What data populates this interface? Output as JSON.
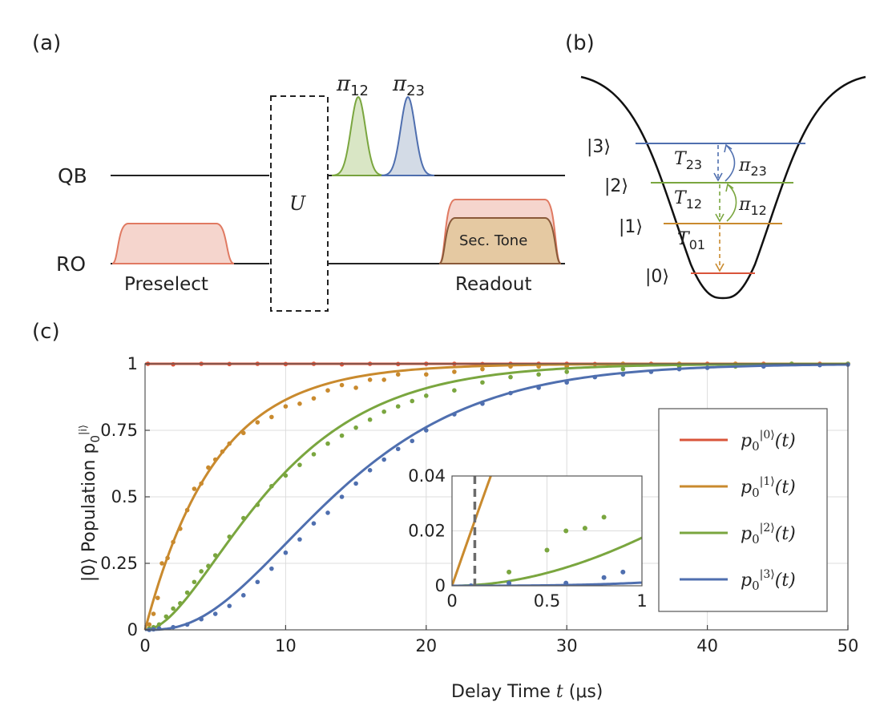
{
  "panels": {
    "a": "(a)",
    "b": "(b)",
    "c": "(c)"
  },
  "pulse_sequence": {
    "qb_label": "QB",
    "ro_label": "RO",
    "gate_label": "U",
    "pulse1": {
      "name": "π",
      "sub": "12",
      "color": "#7aa63f"
    },
    "pulse2": {
      "name": "π",
      "sub": "23",
      "color": "#4f6faf"
    },
    "preselect_label": "Preselect",
    "readout_label": "Readout",
    "sec_tone_label": "Sec. Tone",
    "readout_color": "#e38a73",
    "sec_tone_color": "#c79a4e"
  },
  "energy_levels": {
    "levels": [
      {
        "ket": "|0⟩",
        "color": "#d9543a"
      },
      {
        "ket": "|1⟩",
        "color": "#c98a2e"
      },
      {
        "ket": "|2⟩",
        "color": "#7aa63f"
      },
      {
        "ket": "|3⟩",
        "color": "#4f6faf"
      }
    ],
    "decays": [
      {
        "name": "T",
        "sub": "23"
      },
      {
        "name": "T",
        "sub": "12"
      },
      {
        "name": "T",
        "sub": "01"
      }
    ],
    "drives": [
      {
        "name": "π",
        "sub": "23"
      },
      {
        "name": "π",
        "sub": "12"
      }
    ]
  },
  "chart_data": {
    "type": "line",
    "xlabel_prefix": "Delay Time ",
    "xlabel_var": "t",
    "xlabel_unit": " (μs)",
    "ylabel": "|0⟩ Population p",
    "ylabel_sub": "0",
    "ylabel_sup": "|i⟩",
    "xlim": [
      0,
      50
    ],
    "ylim": [
      0,
      1
    ],
    "xticks": [
      0,
      10,
      20,
      30,
      40,
      50
    ],
    "yticks": [
      0,
      0.25,
      0.5,
      0.75,
      1
    ],
    "ytick_labels": [
      "0",
      "0.25",
      "0.5",
      "0.75",
      "1"
    ],
    "series": [
      {
        "name": "p0|0⟩(t)",
        "label_base": "p",
        "label_sub": "0",
        "label_sup": "|0⟩",
        "label_tail": "(t)",
        "color": "#d9543a",
        "model": "flat",
        "points": [
          [
            0.2,
            1.0
          ],
          [
            2,
            0.998
          ],
          [
            4,
            1.0
          ],
          [
            6,
            0.999
          ],
          [
            8,
            1.0
          ],
          [
            10,
            0.999
          ],
          [
            12,
            1.0
          ],
          [
            14,
            0.998
          ],
          [
            16,
            1.0
          ],
          [
            18,
            0.999
          ],
          [
            20,
            1.0
          ],
          [
            22,
            1.0
          ],
          [
            24,
            0.999
          ],
          [
            26,
            1.0
          ],
          [
            28,
            1.0
          ],
          [
            30,
            1.0
          ],
          [
            32,
            0.999
          ],
          [
            34,
            1.0
          ],
          [
            36,
            1.0
          ],
          [
            38,
            1.0
          ],
          [
            40,
            1.0
          ],
          [
            42,
            1.0
          ],
          [
            44,
            1.0
          ],
          [
            46,
            1.0
          ],
          [
            48,
            1.0
          ],
          [
            50,
            1.0
          ]
        ]
      },
      {
        "name": "p0|1⟩(t)",
        "label_base": "p",
        "label_sub": "0",
        "label_sup": "|1⟩",
        "label_tail": "(t)",
        "color": "#c98a2e",
        "model": "n1",
        "T": 5,
        "points": [
          [
            0.3,
            0.02
          ],
          [
            0.6,
            0.06
          ],
          [
            0.9,
            0.12
          ],
          [
            1.2,
            0.25
          ],
          [
            1.6,
            0.27
          ],
          [
            2,
            0.33
          ],
          [
            2.5,
            0.38
          ],
          [
            3,
            0.45
          ],
          [
            3.5,
            0.53
          ],
          [
            4,
            0.55
          ],
          [
            4.5,
            0.61
          ],
          [
            5,
            0.64
          ],
          [
            5.5,
            0.67
          ],
          [
            6,
            0.7
          ],
          [
            7,
            0.74
          ],
          [
            8,
            0.78
          ],
          [
            9,
            0.8
          ],
          [
            10,
            0.84
          ],
          [
            11,
            0.85
          ],
          [
            12,
            0.87
          ],
          [
            13,
            0.9
          ],
          [
            14,
            0.92
          ],
          [
            15,
            0.91
          ],
          [
            16,
            0.94
          ],
          [
            17,
            0.94
          ],
          [
            18,
            0.96
          ],
          [
            20,
            0.96
          ],
          [
            22,
            0.97
          ],
          [
            24,
            0.98
          ],
          [
            26,
            0.99
          ],
          [
            28,
            0.99
          ],
          [
            30,
            0.99
          ],
          [
            34,
            1.0
          ],
          [
            38,
            1.0
          ],
          [
            42,
            1.0
          ],
          [
            46,
            1.0
          ],
          [
            50,
            1.0
          ]
        ]
      },
      {
        "name": "p0|2⟩(t)",
        "label_base": "p",
        "label_sub": "0",
        "label_sup": "|2⟩",
        "label_tail": "(t)",
        "color": "#7aa63f",
        "model": "n2",
        "T": 5,
        "points": [
          [
            0.3,
            0.005
          ],
          [
            0.6,
            0.01
          ],
          [
            1,
            0.02
          ],
          [
            1.5,
            0.05
          ],
          [
            2,
            0.08
          ],
          [
            2.5,
            0.1
          ],
          [
            3,
            0.14
          ],
          [
            3.5,
            0.18
          ],
          [
            4,
            0.22
          ],
          [
            4.5,
            0.24
          ],
          [
            5,
            0.28
          ],
          [
            6,
            0.35
          ],
          [
            7,
            0.42
          ],
          [
            8,
            0.47
          ],
          [
            9,
            0.54
          ],
          [
            10,
            0.58
          ],
          [
            11,
            0.62
          ],
          [
            12,
            0.66
          ],
          [
            13,
            0.7
          ],
          [
            14,
            0.73
          ],
          [
            15,
            0.76
          ],
          [
            16,
            0.79
          ],
          [
            17,
            0.82
          ],
          [
            18,
            0.84
          ],
          [
            19,
            0.86
          ],
          [
            20,
            0.88
          ],
          [
            22,
            0.9
          ],
          [
            24,
            0.93
          ],
          [
            26,
            0.95
          ],
          [
            28,
            0.96
          ],
          [
            30,
            0.97
          ],
          [
            34,
            0.98
          ],
          [
            38,
            0.99
          ],
          [
            42,
            0.99
          ],
          [
            46,
            1.0
          ],
          [
            50,
            1.0
          ]
        ]
      },
      {
        "name": "p0|3⟩(t)",
        "label_base": "p",
        "label_sub": "0",
        "label_sup": "|3⟩",
        "label_tail": "(t)",
        "color": "#4f6faf",
        "model": "n3",
        "T": 5,
        "points": [
          [
            0.3,
            0.0
          ],
          [
            0.6,
            0.002
          ],
          [
            1,
            0.005
          ],
          [
            2,
            0.01
          ],
          [
            3,
            0.02
          ],
          [
            4,
            0.04
          ],
          [
            5,
            0.06
          ],
          [
            6,
            0.09
          ],
          [
            7,
            0.13
          ],
          [
            8,
            0.18
          ],
          [
            9,
            0.23
          ],
          [
            10,
            0.29
          ],
          [
            11,
            0.34
          ],
          [
            12,
            0.4
          ],
          [
            13,
            0.44
          ],
          [
            14,
            0.5
          ],
          [
            15,
            0.55
          ],
          [
            16,
            0.6
          ],
          [
            17,
            0.64
          ],
          [
            18,
            0.68
          ],
          [
            19,
            0.71
          ],
          [
            20,
            0.75
          ],
          [
            22,
            0.81
          ],
          [
            24,
            0.85
          ],
          [
            26,
            0.89
          ],
          [
            28,
            0.91
          ],
          [
            30,
            0.93
          ],
          [
            32,
            0.95
          ],
          [
            34,
            0.96
          ],
          [
            36,
            0.97
          ],
          [
            38,
            0.98
          ],
          [
            40,
            0.985
          ],
          [
            44,
            0.99
          ],
          [
            48,
            0.995
          ],
          [
            50,
            0.997
          ]
        ]
      }
    ],
    "inset": {
      "xlim": [
        0,
        1
      ],
      "ylim": [
        0,
        0.04
      ],
      "xticks": [
        0,
        0.5,
        1
      ],
      "xtick_labels": [
        "0",
        "0.5",
        "1"
      ],
      "yticks": [
        0,
        0.02,
        0.04
      ],
      "ytick_labels": [
        "0",
        "0.02",
        "0.04"
      ],
      "marker_x": 0.12,
      "points": {
        "n2": [
          [
            0.3,
            0.005
          ],
          [
            0.5,
            0.013
          ],
          [
            0.6,
            0.02
          ],
          [
            0.7,
            0.021
          ],
          [
            0.8,
            0.025
          ]
        ],
        "n3": [
          [
            0.1,
            0.0
          ],
          [
            0.3,
            0.001
          ],
          [
            0.6,
            0.001
          ],
          [
            0.8,
            0.003
          ],
          [
            0.9,
            0.005
          ]
        ]
      }
    }
  }
}
